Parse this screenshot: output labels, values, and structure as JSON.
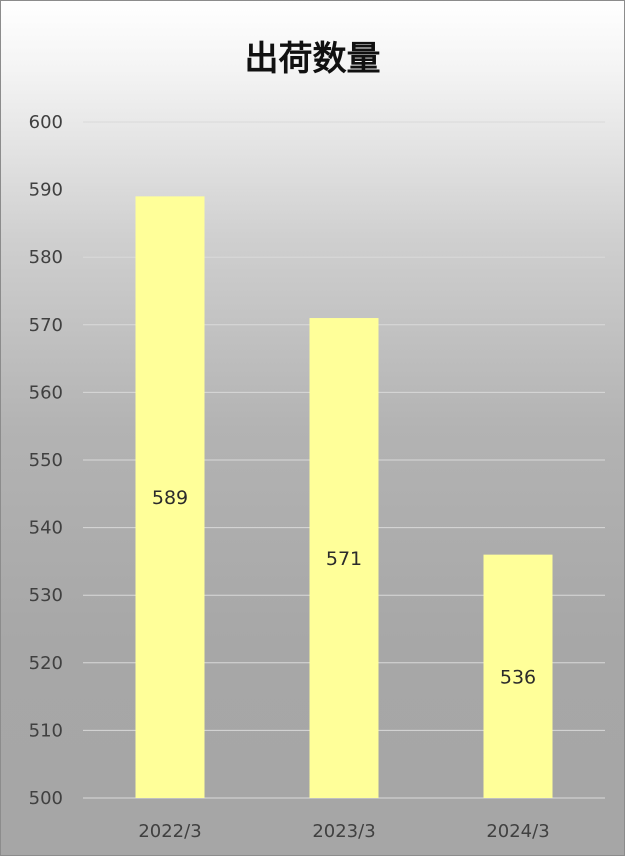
{
  "chart_data": {
    "type": "bar",
    "title": "出荷数量",
    "categories": [
      "2022/3",
      "2023/3",
      "2024/3"
    ],
    "values": [
      589,
      571,
      536
    ],
    "ylim": [
      500,
      600
    ],
    "yticks": [
      500,
      510,
      520,
      530,
      540,
      550,
      560,
      570,
      580,
      590,
      600
    ],
    "grid": true,
    "legend": "none",
    "data_labels": true,
    "colors": {
      "bar": "#ffff99",
      "grid": "#d9d9d9",
      "tick_text": "#404040"
    }
  }
}
